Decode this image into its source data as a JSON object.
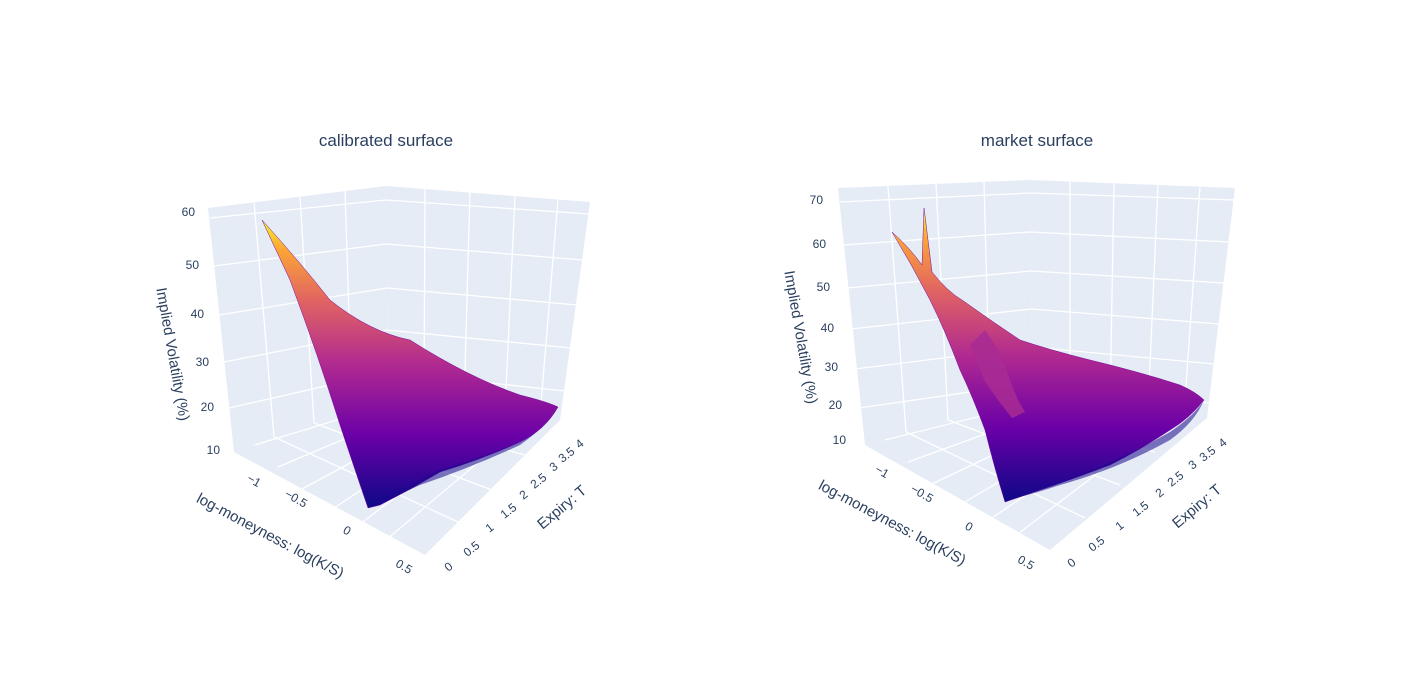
{
  "chart_data": [
    {
      "type": "surface",
      "title": "calibrated surface",
      "xlabel": "log-moneyness: log(K/S)",
      "ylabel": "Expiry: T",
      "zlabel": "Implied Volatility (%)",
      "x_ticks": [
        "−1",
        "−0.5",
        "0",
        "0.5"
      ],
      "y_ticks": [
        "0",
        "0.5",
        "1",
        "1.5",
        "2",
        "2.5",
        "3",
        "3.5",
        "4"
      ],
      "z_ticks": [
        "10",
        "20",
        "30",
        "40",
        "50",
        "60"
      ],
      "xlim": [
        -1.3,
        0.6
      ],
      "ylim": [
        0,
        4
      ],
      "zlim": [
        10,
        60
      ],
      "colorscale": [
        "#0d0887",
        "#6a00a8",
        "#b12a90",
        "#e16462",
        "#fca636",
        "#f0f921"
      ],
      "surface_rows": [
        {
          "T": 0.1,
          "points": [
            [
              -1.2,
              58
            ],
            [
              -1.0,
              50
            ],
            [
              -0.8,
              42
            ],
            [
              -0.6,
              34
            ],
            [
              -0.4,
              26
            ],
            [
              -0.2,
              18
            ],
            [
              0.0,
              11
            ]
          ]
        },
        {
          "T": 1.0,
          "points": [
            [
              -1.2,
              38
            ],
            [
              -1.0,
              34
            ],
            [
              -0.8,
              30
            ],
            [
              -0.6,
              26
            ],
            [
              -0.4,
              22
            ],
            [
              -0.2,
              18
            ],
            [
              0.0,
              15
            ]
          ]
        },
        {
          "T": 2.0,
          "points": [
            [
              -1.2,
              32
            ],
            [
              -1.0,
              29
            ],
            [
              -0.8,
              26
            ],
            [
              -0.6,
              23
            ],
            [
              -0.4,
              20
            ],
            [
              -0.2,
              18
            ],
            [
              0.0,
              16
            ]
          ]
        },
        {
          "T": 3.0,
          "points": [
            [
              -1.2,
              28
            ],
            [
              -1.0,
              26
            ],
            [
              -0.8,
              24
            ],
            [
              -0.6,
              22
            ],
            [
              -0.4,
              20
            ],
            [
              -0.2,
              18
            ],
            [
              0.0,
              17
            ]
          ]
        },
        {
          "T": 4.0,
          "points": [
            [
              -1.2,
              26
            ],
            [
              -1.0,
              24
            ],
            [
              -0.8,
              23
            ],
            [
              -0.6,
              21
            ],
            [
              -0.4,
              20
            ],
            [
              -0.2,
              19
            ],
            [
              0.0,
              18
            ]
          ]
        }
      ]
    },
    {
      "type": "surface",
      "title": "market surface",
      "xlabel": "log-moneyness: log(K/S)",
      "ylabel": "Expiry: T",
      "zlabel": "Implied Volatility (%)",
      "x_ticks": [
        "−1",
        "−0.5",
        "0",
        "0.5"
      ],
      "y_ticks": [
        "0",
        "0.5",
        "1",
        "1.5",
        "2",
        "2.5",
        "3",
        "3.5",
        "4"
      ],
      "z_ticks": [
        "10",
        "20",
        "30",
        "40",
        "50",
        "60",
        "70"
      ],
      "xlim": [
        -1.3,
        0.6
      ],
      "ylim": [
        0,
        4
      ],
      "zlim": [
        10,
        70
      ],
      "colorscale": [
        "#0d0887",
        "#6a00a8",
        "#b12a90",
        "#e16462",
        "#fca636",
        "#f0f921"
      ],
      "surface_rows": [
        {
          "T": 0.1,
          "points": [
            [
              -1.2,
              63
            ],
            [
              -1.1,
              68
            ],
            [
              -1.0,
              56
            ],
            [
              -0.8,
              44
            ],
            [
              -0.6,
              34
            ],
            [
              -0.4,
              24
            ],
            [
              -0.2,
              16
            ],
            [
              0.0,
              11
            ]
          ]
        },
        {
          "T": 1.0,
          "points": [
            [
              -1.2,
              38
            ],
            [
              -1.0,
              34
            ],
            [
              -0.8,
              31
            ],
            [
              -0.6,
              27
            ],
            [
              -0.4,
              23
            ],
            [
              -0.2,
              18
            ],
            [
              0.0,
              15
            ]
          ]
        },
        {
          "T": 2.0,
          "points": [
            [
              -1.2,
              33
            ],
            [
              -1.0,
              30
            ],
            [
              -0.8,
              27
            ],
            [
              -0.6,
              24
            ],
            [
              -0.4,
              21
            ],
            [
              -0.2,
              18
            ],
            [
              0.0,
              16
            ]
          ]
        },
        {
          "T": 3.0,
          "points": [
            [
              -1.2,
              30
            ],
            [
              -1.0,
              28
            ],
            [
              -0.8,
              25
            ],
            [
              -0.6,
              23
            ],
            [
              -0.4,
              21
            ],
            [
              -0.2,
              19
            ],
            [
              0.0,
              17
            ]
          ]
        },
        {
          "T": 4.0,
          "points": [
            [
              -1.2,
              28
            ],
            [
              -1.0,
              26
            ],
            [
              -0.8,
              24
            ],
            [
              -0.6,
              22
            ],
            [
              -0.4,
              21
            ],
            [
              -0.2,
              20
            ],
            [
              0.0,
              19
            ]
          ]
        }
      ]
    }
  ]
}
